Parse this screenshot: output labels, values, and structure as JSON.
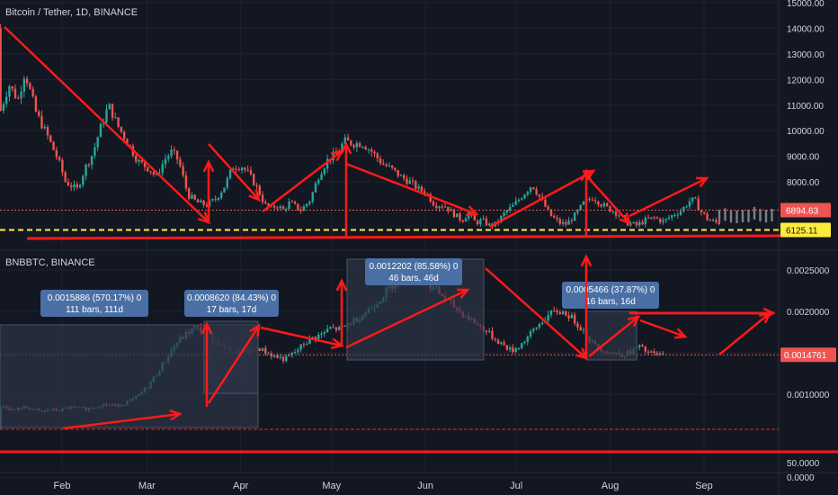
{
  "colors": {
    "background": "#131722",
    "grid": "#1e2230",
    "axis_text": "#d1d4dc",
    "up": "#26a69a",
    "down": "#ef5350",
    "annotation": "#ff1a1a",
    "support": "#ffeb3b",
    "measure_box": "#2c3446",
    "measure_label": "#4a6fa5"
  },
  "panes": {
    "top_legend": "Bitcoin / Tether, 1D, BINANCE",
    "bottom_legend": "BNBBTC, BINANCE"
  },
  "chart_data": [
    {
      "type": "candlestick",
      "name": "Bitcoin / Tether, 1D, BINANCE",
      "x_axis": {
        "ticks": [
          "Feb",
          "Mar",
          "Apr",
          "May",
          "Jun",
          "Jul",
          "Aug",
          "Sep"
        ]
      },
      "y_axis": {
        "range": [
          5700,
          15000
        ],
        "ticks": [
          "15000.00",
          "14000.00",
          "13000.00",
          "12000.00",
          "11000.00",
          "10000.00",
          "9000.00",
          "8000.00"
        ]
      },
      "price_labels": [
        {
          "value": 6894.63,
          "text": "6894.63",
          "color": "#ef5350"
        },
        {
          "value": 6125.11,
          "text": "6125.11",
          "color": "#ffeb3b"
        }
      ],
      "keypoints": [
        [
          0,
          14000
        ],
        [
          4,
          14600
        ],
        [
          10,
          12800
        ],
        [
          14,
          10700
        ],
        [
          18,
          11800
        ],
        [
          22,
          11200
        ],
        [
          25,
          12300
        ],
        [
          30,
          10700
        ],
        [
          35,
          9800
        ],
        [
          40,
          8800
        ],
        [
          43,
          8000
        ],
        [
          48,
          7700
        ],
        [
          52,
          8600
        ],
        [
          55,
          9100
        ],
        [
          58,
          10000
        ],
        [
          62,
          11000
        ],
        [
          66,
          10200
        ],
        [
          70,
          9600
        ],
        [
          75,
          8800
        ],
        [
          80,
          8500
        ],
        [
          83,
          8200
        ],
        [
          87,
          8900
        ],
        [
          90,
          9200
        ],
        [
          93,
          8800
        ],
        [
          97,
          7500
        ],
        [
          101,
          7200
        ],
        [
          105,
          7100
        ],
        [
          109,
          7300
        ],
        [
          113,
          7800
        ],
        [
          117,
          8600
        ],
        [
          121,
          8600
        ],
        [
          124,
          8300
        ],
        [
          128,
          7700
        ],
        [
          131,
          7100
        ],
        [
          134,
          6950
        ],
        [
          136,
          7100
        ],
        [
          139,
          6900
        ],
        [
          142,
          7200
        ],
        [
          145,
          7000
        ],
        [
          147,
          6900
        ],
        [
          151,
          7300
        ],
        [
          155,
          8300
        ],
        [
          159,
          8900
        ],
        [
          163,
          9100
        ],
        [
          166,
          9600
        ],
        [
          170,
          9500
        ],
        [
          174,
          9500
        ],
        [
          178,
          9200
        ],
        [
          183,
          8700
        ],
        [
          187,
          8500
        ],
        [
          191,
          8200
        ],
        [
          195,
          8000
        ],
        [
          199,
          7700
        ],
        [
          202,
          7600
        ],
        [
          206,
          7100
        ],
        [
          210,
          7100
        ],
        [
          215,
          6700
        ],
        [
          218,
          6500
        ],
        [
          221,
          6800
        ],
        [
          224,
          6400
        ],
        [
          227,
          6500
        ],
        [
          230,
          6300
        ],
        [
          233,
          6350
        ],
        [
          237,
          6800
        ],
        [
          241,
          7100
        ],
        [
          245,
          7500
        ],
        [
          249,
          7900
        ],
        [
          253,
          7300
        ],
        [
          257,
          6700
        ],
        [
          261,
          6400
        ],
        [
          264,
          6350
        ],
        [
          268,
          6700
        ],
        [
          272,
          7200
        ],
        [
          276,
          7400
        ],
        [
          280,
          7100
        ],
        [
          284,
          6900
        ],
        [
          287,
          6750
        ],
        [
          291,
          6400
        ],
        [
          295,
          6300
        ],
        [
          299,
          6500
        ],
        [
          303,
          6600
        ],
        [
          307,
          6450
        ],
        [
          311,
          6700
        ],
        [
          315,
          6900
        ],
        [
          319,
          7300
        ],
        [
          321,
          7250
        ],
        [
          323,
          6900
        ],
        [
          327,
          6500
        ],
        [
          331,
          6400
        ],
        [
          335,
          6500
        ],
        [
          339,
          6600
        ],
        [
          343,
          6450
        ],
        [
          347,
          6500
        ],
        [
          351,
          6400
        ],
        [
          355,
          6600
        ],
        [
          359,
          6550
        ],
        [
          363,
          6500
        ],
        [
          365,
          6894
        ]
      ]
    },
    {
      "type": "candlestick",
      "name": "BNBBTC, BINANCE",
      "y_axis": {
        "range": [
          -0.0001,
          0.0027
        ],
        "ticks": [
          "0.0025000",
          "0.0020000",
          "0.0015000",
          "0.0010000",
          "0.0000"
        ]
      },
      "price_labels": [
        {
          "value": 0.0014761,
          "text": "0.0014761",
          "color": "#ef5350"
        }
      ],
      "extra_axis_label": "50.0000",
      "measure_boxes": [
        {
          "text1": "0.0015886 (570.17%) 0",
          "text2": "111 bars, 111d"
        },
        {
          "text1": "0.0008620 (84.43%) 0",
          "text2": "17 bars, 17d"
        },
        {
          "text1": "0.0012202 (85.58%) 0",
          "text2": "46 bars, 46d"
        },
        {
          "text1": "0.0005466 (37.87%) 0",
          "text2": "16 bars, 16d"
        }
      ],
      "keypoints": [
        [
          0,
          0.0006
        ],
        [
          4,
          0.00062
        ],
        [
          8,
          0.00075
        ],
        [
          12,
          0.00082
        ],
        [
          16,
          0.00086
        ],
        [
          20,
          0.0008
        ],
        [
          24,
          0.00084
        ],
        [
          28,
          0.00083
        ],
        [
          32,
          0.00078
        ],
        [
          36,
          0.00082
        ],
        [
          40,
          0.0008
        ],
        [
          44,
          0.00084
        ],
        [
          48,
          0.00083
        ],
        [
          52,
          0.00082
        ],
        [
          56,
          0.00085
        ],
        [
          60,
          0.00088
        ],
        [
          64,
          0.00086
        ],
        [
          68,
          0.00088
        ],
        [
          72,
          0.00092
        ],
        [
          76,
          0.001
        ],
        [
          80,
          0.00112
        ],
        [
          84,
          0.00128
        ],
        [
          88,
          0.00145
        ],
        [
          92,
          0.00162
        ],
        [
          96,
          0.00172
        ],
        [
          100,
          0.0018
        ],
        [
          104,
          0.00176
        ],
        [
          108,
          0.00168
        ],
        [
          112,
          0.00158
        ],
        [
          116,
          0.00152
        ],
        [
          120,
          0.0015
        ],
        [
          124,
          0.00152
        ],
        [
          128,
          0.00156
        ],
        [
          132,
          0.0015
        ],
        [
          136,
          0.00145
        ],
        [
          140,
          0.00142
        ],
        [
          144,
          0.0015
        ],
        [
          148,
          0.0016
        ],
        [
          152,
          0.00168
        ],
        [
          156,
          0.00172
        ],
        [
          160,
          0.0018
        ],
        [
          164,
          0.00178
        ],
        [
          168,
          0.00185
        ],
        [
          172,
          0.00192
        ],
        [
          176,
          0.002
        ],
        [
          180,
          0.0021
        ],
        [
          184,
          0.00222
        ],
        [
          188,
          0.00235
        ],
        [
          192,
          0.00248
        ],
        [
          194,
          0.00255
        ],
        [
          196,
          0.00258
        ],
        [
          200,
          0.00245
        ],
        [
          204,
          0.00232
        ],
        [
          208,
          0.00222
        ],
        [
          212,
          0.00212
        ],
        [
          216,
          0.00202
        ],
        [
          220,
          0.00194
        ],
        [
          224,
          0.00186
        ],
        [
          228,
          0.00178
        ],
        [
          232,
          0.00168
        ],
        [
          236,
          0.0016
        ],
        [
          240,
          0.00152
        ],
        [
          244,
          0.0016
        ],
        [
          248,
          0.00172
        ],
        [
          252,
          0.00184
        ],
        [
          256,
          0.00195
        ],
        [
          260,
          0.002
        ],
        [
          264,
          0.00198
        ],
        [
          268,
          0.00188
        ],
        [
          272,
          0.00176
        ],
        [
          276,
          0.0016
        ],
        [
          280,
          0.00154
        ],
        [
          284,
          0.0015
        ],
        [
          288,
          0.00148
        ],
        [
          292,
          0.0015
        ],
        [
          296,
          0.00158
        ],
        [
          300,
          0.0015
        ],
        [
          304,
          0.00148
        ],
        [
          307,
          0.00147
        ]
      ]
    }
  ]
}
